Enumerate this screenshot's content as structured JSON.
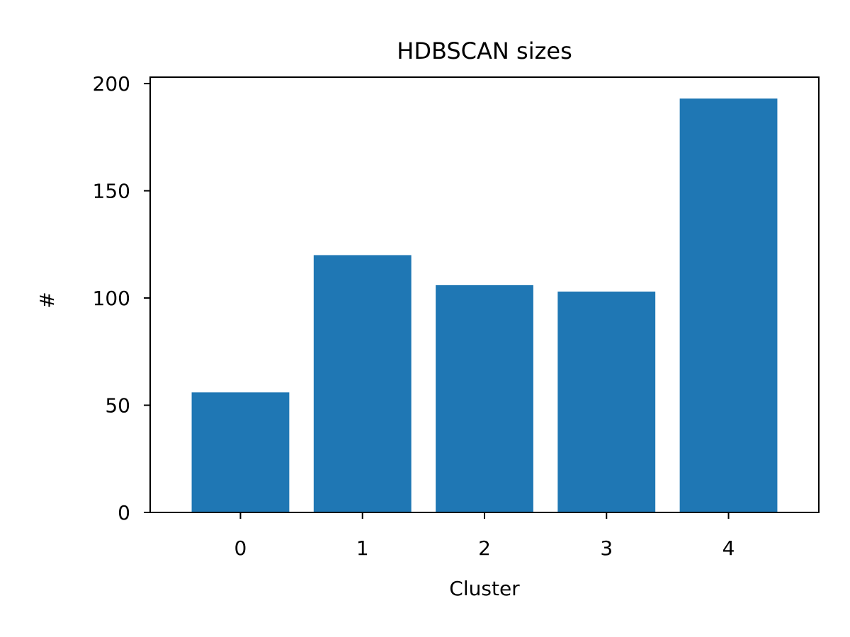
{
  "chart_data": {
    "type": "bar",
    "title": "HDBSCAN sizes",
    "xlabel": "Cluster",
    "ylabel": "#",
    "categories": [
      "0",
      "1",
      "2",
      "3",
      "4"
    ],
    "values": [
      56,
      120,
      106,
      103,
      193
    ],
    "ylim": [
      0,
      203
    ],
    "yticks": [
      0,
      50,
      100,
      150,
      200
    ],
    "grid": false,
    "legend": "none",
    "bar_color": "#1f77b4"
  }
}
